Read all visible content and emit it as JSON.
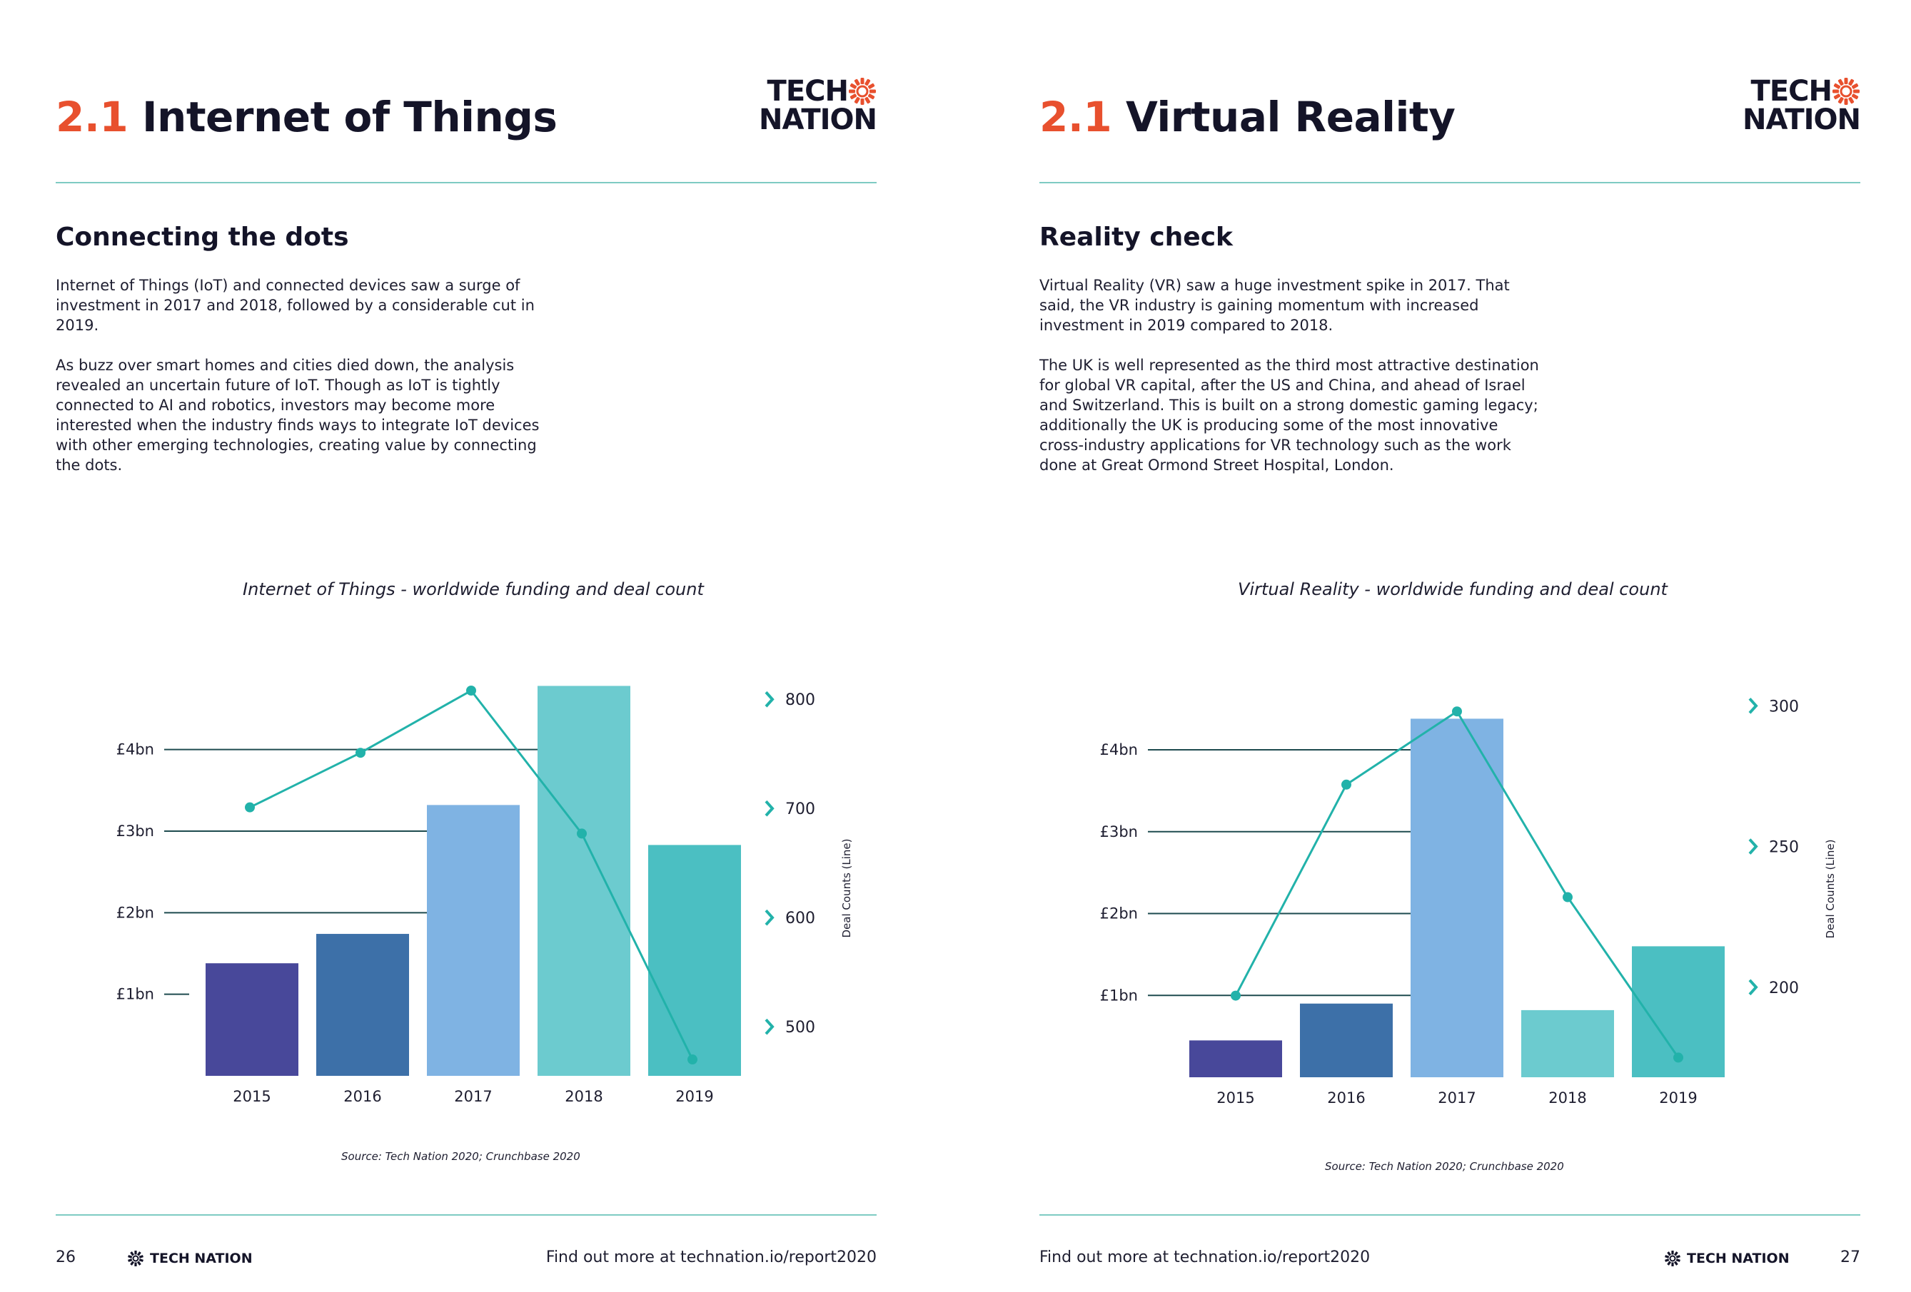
{
  "brand": {
    "logo_line1": "TECH",
    "logo_line2": "NATION",
    "footer_logo": "TECH NATION",
    "accent_color": "#e8502e",
    "rule_color": "#7ecbc3"
  },
  "pages": [
    {
      "title_num": "2.1",
      "title_text": "Internet of Things",
      "subhead": "Connecting the dots",
      "paragraphs": [
        "Internet of Things (IoT) and connected devices saw a surge of investment in 2017 and 2018, followed by a considerable cut in 2019.",
        "As buzz over smart homes and cities died down, the analysis revealed an uncertain future of IoT. Though as IoT is tightly connected to AI and robotics, investors may become more interested when the industry finds ways to integrate IoT devices with other emerging technologies, creating value by connecting the dots."
      ],
      "source": "Source: Tech Nation 2020; Crunchbase 2020",
      "page_number": "26",
      "footer_link": "Find out more at technation.io/report2020"
    },
    {
      "title_num": "2.1",
      "title_text": "Virtual Reality",
      "subhead": "Reality check",
      "paragraphs": [
        "Virtual Reality (VR) saw a huge investment spike in 2017. That said, the VR industry is gaining momentum with increased investment in 2019 compared to 2018.",
        "The UK is well represented as the third most attractive destination for global VR capital, after the US and China, and ahead of Israel and Switzerland. This is built on a strong domestic gaming legacy; additionally the UK is producing some of the most innovative cross-industry applications for VR technology such as the work done at Great Ormond Street Hospital, London."
      ],
      "source": "Source: Tech Nation 2020; Crunchbase 2020",
      "page_number": "27",
      "footer_link": "Find out more at technation.io/report2020"
    }
  ],
  "chart_data": [
    {
      "type": "bar",
      "title": "Internet of Things - worldwide funding and deal count",
      "categories": [
        "2015",
        "2016",
        "2017",
        "2018",
        "2019"
      ],
      "series": [
        {
          "values": [
            1.38,
            1.74,
            3.32,
            4.78,
            2.83
          ],
          "colors": [
            "#48489a",
            "#3d70a8",
            "#7fb3e3",
            "#6ccbcf",
            "#4bbfc2"
          ]
        },
        {
          "type": "line",
          "axis": "right",
          "values": [
            701,
            751,
            808,
            677,
            470
          ],
          "color": "#22b2aa"
        }
      ],
      "left_ticks": [
        "£1bn",
        "£2bn",
        "£3bn",
        "£4bn"
      ],
      "left_tick_values": [
        1,
        2,
        3,
        4
      ],
      "ylim": [
        0,
        4.95
      ],
      "right_ticks": [
        "500",
        "600",
        "700",
        "800"
      ],
      "right_tick_values": [
        500,
        600,
        700,
        800
      ],
      "y2lim": [
        455,
        825
      ],
      "y2label": "Deal Counts (Line)",
      "grid": true,
      "right_tick_color": "#22b2aa"
    },
    {
      "type": "bar",
      "title": "Virtual Reality - worldwide funding and deal count",
      "categories": [
        "2015",
        "2016",
        "2017",
        "2018",
        "2019"
      ],
      "series": [
        {
          "values": [
            0.45,
            0.9,
            4.38,
            0.82,
            1.6
          ],
          "colors": [
            "#48489a",
            "#3d70a8",
            "#7fb3e3",
            "#6ccbcf",
            "#4bbfc2"
          ]
        },
        {
          "type": "line",
          "axis": "right",
          "values": [
            197,
            272,
            298,
            232,
            175
          ],
          "color": "#22b2aa"
        }
      ],
      "left_ticks": [
        "£1bn",
        "£2bn",
        "£3bn",
        "£4bn"
      ],
      "left_tick_values": [
        1,
        2,
        3,
        4
      ],
      "ylim": [
        0,
        4.95
      ],
      "right_ticks": [
        "200",
        "250",
        "300"
      ],
      "right_tick_values": [
        200,
        250,
        300
      ],
      "y2lim": [
        168,
        312
      ],
      "y2label": "Deal Counts (Line)",
      "grid": true,
      "right_tick_color": "#22b2aa"
    }
  ]
}
